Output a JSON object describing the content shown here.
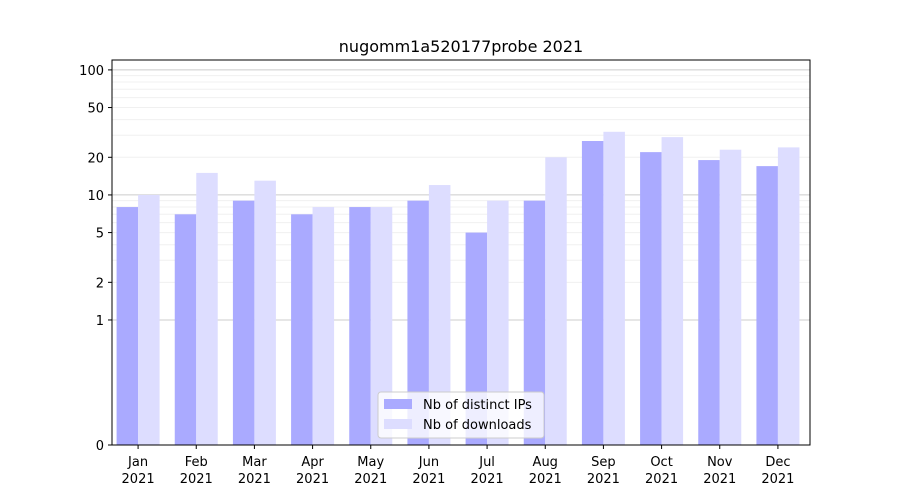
{
  "chart_data": {
    "type": "bar",
    "title": "nugomm1a520177probe 2021",
    "xlabel": "",
    "ylabel": "",
    "y_scale": "symlog",
    "ylim": [
      0,
      120
    ],
    "y_ticks": [
      0,
      1,
      2,
      5,
      10,
      20,
      50,
      100
    ],
    "y_tick_labels": [
      "0",
      "1",
      "2",
      "5",
      "10",
      "20",
      "50",
      "100"
    ],
    "categories": [
      [
        "Jan",
        "2021"
      ],
      [
        "Feb",
        "2021"
      ],
      [
        "Mar",
        "2021"
      ],
      [
        "Apr",
        "2021"
      ],
      [
        "May",
        "2021"
      ],
      [
        "Jun",
        "2021"
      ],
      [
        "Jul",
        "2021"
      ],
      [
        "Aug",
        "2021"
      ],
      [
        "Sep",
        "2021"
      ],
      [
        "Oct",
        "2021"
      ],
      [
        "Nov",
        "2021"
      ],
      [
        "Dec",
        "2021"
      ]
    ],
    "series": [
      {
        "name": "Nb of distinct IPs",
        "color": "#aaaaff",
        "values": [
          8,
          7,
          9,
          7,
          8,
          9,
          5,
          9,
          27,
          22,
          19,
          17
        ]
      },
      {
        "name": "Nb of downloads",
        "color": "#ddddff",
        "values": [
          10,
          15,
          13,
          8,
          8,
          12,
          9,
          20,
          32,
          29,
          23,
          24
        ]
      }
    ],
    "grid": true,
    "legend_position": "lower center"
  }
}
